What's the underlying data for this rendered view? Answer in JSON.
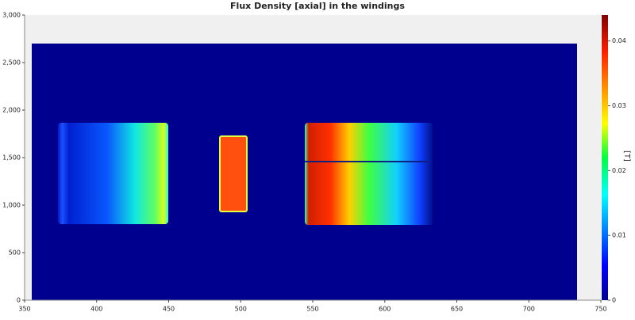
{
  "chart_data": {
    "type": "heatmap",
    "title": "Flux Density [axial] in the windings",
    "colorbar_label": "[T]",
    "xlim": [
      350,
      750
    ],
    "xticks": [
      350,
      400,
      450,
      500,
      550,
      600,
      650,
      700,
      750
    ],
    "ylim": [
      0,
      3000
    ],
    "yticks": [
      0,
      500,
      {
        "value": 1000,
        "label": "1,000"
      },
      {
        "value": 1500,
        "label": "1,500"
      },
      {
        "value": 2000,
        "label": "2,000"
      },
      {
        "value": 2500,
        "label": "2,500"
      },
      {
        "value": 3000,
        "label": "3,000"
      }
    ],
    "clim": [
      0,
      0.044
    ],
    "cticks": [
      0,
      0.01,
      0.02,
      0.03,
      0.04
    ],
    "colormap": "jet"
  }
}
